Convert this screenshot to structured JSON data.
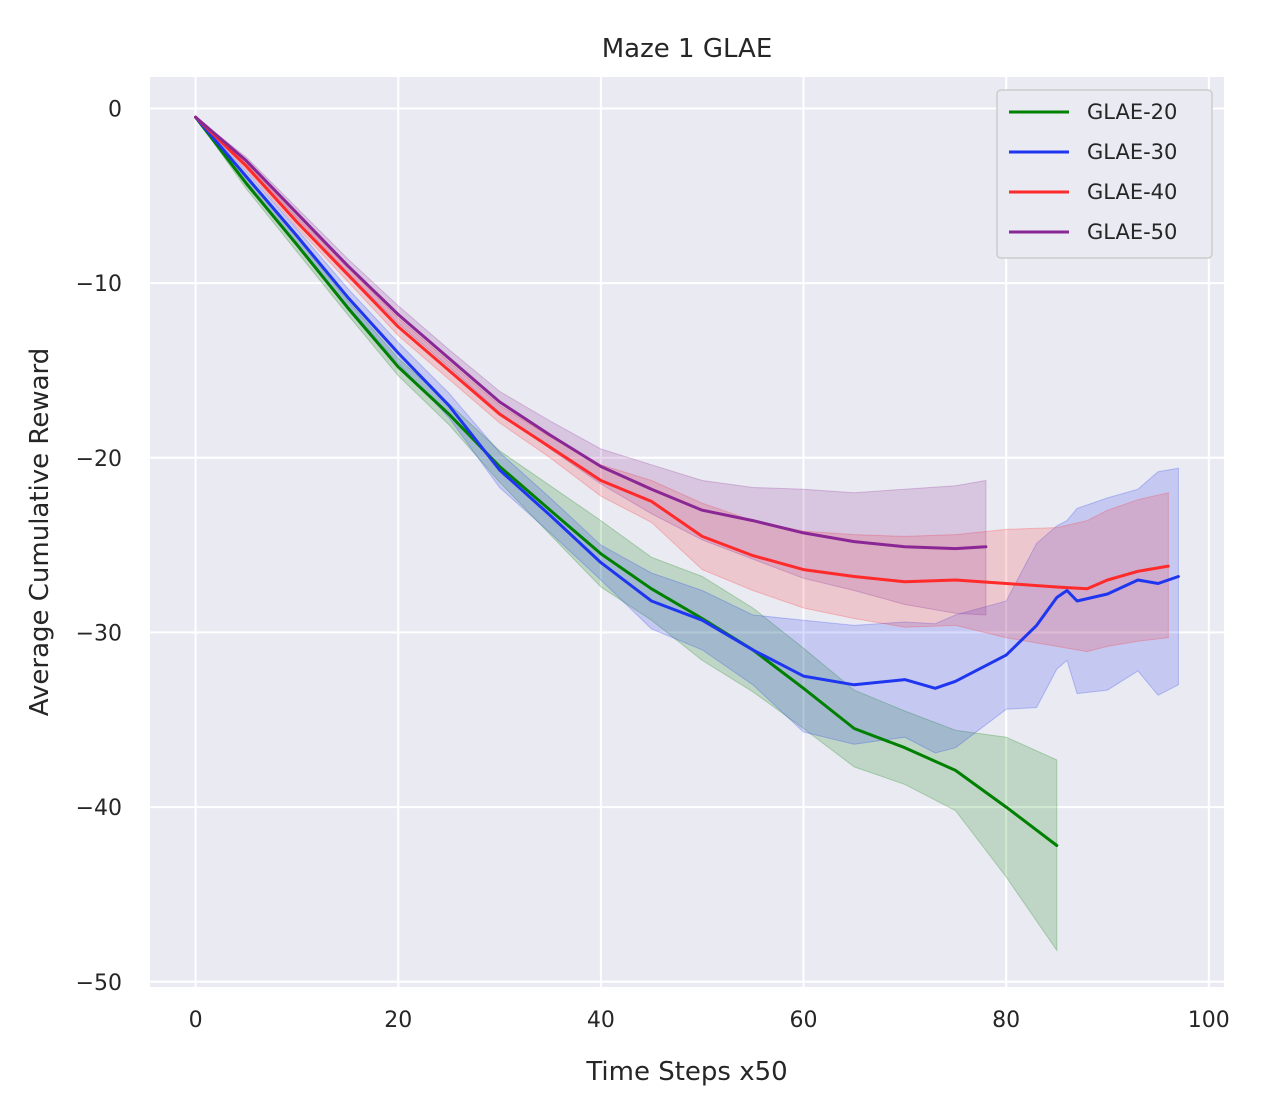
{
  "chart_data": {
    "type": "line",
    "title": "Maze 1 GLAE",
    "xlabel": "Time Steps x50",
    "ylabel": "Average Cumulative Reward",
    "xlim": [
      -4.5,
      101.5
    ],
    "ylim": [
      -50.3,
      1.8
    ],
    "xticks": [
      0,
      20,
      40,
      60,
      80,
      100
    ],
    "yticks": [
      0,
      -10,
      -20,
      -30,
      -40,
      -50
    ],
    "xtick_labels": [
      "0",
      "20",
      "40",
      "60",
      "80",
      "100"
    ],
    "ytick_labels": [
      "0",
      "−10",
      "−20",
      "−30",
      "−40",
      "−50"
    ],
    "grid": true,
    "legend_position": "top-right",
    "series": [
      {
        "name": "GLAE-20",
        "color": "#008000",
        "x": [
          0,
          5,
          10,
          15,
          20,
          25,
          30,
          35,
          40,
          45,
          50,
          55,
          60,
          65,
          70,
          75,
          80,
          85
        ],
        "values": [
          -0.5,
          -4.3,
          -7.8,
          -11.4,
          -14.8,
          -17.5,
          -20.5,
          -23.0,
          -25.5,
          -27.5,
          -29.2,
          -31.0,
          -33.2,
          -35.5,
          -36.6,
          -37.9,
          -40.0,
          -42.2
        ],
        "upper": [
          -0.5,
          -4.0,
          -7.4,
          -11.0,
          -14.3,
          -16.9,
          -19.6,
          -21.6,
          -23.6,
          -25.7,
          -26.8,
          -28.6,
          -30.9,
          -33.3,
          -34.5,
          -35.6,
          -36.0,
          -37.3
        ],
        "lower": [
          -0.5,
          -4.6,
          -8.2,
          -11.8,
          -15.3,
          -18.1,
          -21.4,
          -24.4,
          -27.4,
          -29.3,
          -31.6,
          -33.4,
          -35.5,
          -37.7,
          -38.7,
          -40.2,
          -44.0,
          -48.2
        ]
      },
      {
        "name": "GLAE-30",
        "color": "#1f36f0",
        "x": [
          0,
          5,
          10,
          15,
          20,
          25,
          30,
          35,
          40,
          45,
          50,
          55,
          60,
          65,
          70,
          73,
          75,
          80,
          83,
          85,
          86,
          87,
          90,
          93,
          95,
          97
        ],
        "values": [
          -0.5,
          -3.9,
          -7.3,
          -10.8,
          -14.0,
          -17.0,
          -20.7,
          -23.3,
          -26.0,
          -28.2,
          -29.3,
          -31.0,
          -32.5,
          -33.0,
          -32.7,
          -33.2,
          -32.8,
          -31.3,
          -29.6,
          -28.0,
          -27.6,
          -28.2,
          -27.8,
          -27.0,
          -27.2,
          -26.8
        ],
        "upper": [
          -0.5,
          -3.6,
          -6.9,
          -10.3,
          -13.4,
          -16.3,
          -19.7,
          -22.3,
          -25.0,
          -26.6,
          -27.6,
          -29.0,
          -29.3,
          -29.6,
          -29.4,
          -29.5,
          -29.0,
          -28.2,
          -24.9,
          -23.9,
          -23.6,
          -22.9,
          -22.3,
          -21.8,
          -20.8,
          -20.6
        ],
        "lower": [
          -0.5,
          -4.2,
          -7.7,
          -11.3,
          -14.6,
          -17.7,
          -21.7,
          -24.3,
          -27.0,
          -29.8,
          -31.0,
          -33.0,
          -35.7,
          -36.4,
          -36.0,
          -36.9,
          -36.6,
          -34.4,
          -34.3,
          -32.1,
          -31.6,
          -33.5,
          -33.3,
          -32.2,
          -33.6,
          -33.0
        ]
      },
      {
        "name": "GLAE-40",
        "color": "#ff2a2a",
        "x": [
          0,
          5,
          10,
          15,
          20,
          25,
          30,
          35,
          40,
          45,
          50,
          55,
          60,
          65,
          70,
          75,
          80,
          85,
          88,
          90,
          93,
          96
        ],
        "values": [
          -0.5,
          -3.3,
          -6.5,
          -9.5,
          -12.5,
          -15.0,
          -17.5,
          -19.4,
          -21.3,
          -22.5,
          -24.5,
          -25.6,
          -26.4,
          -26.8,
          -27.1,
          -27.0,
          -27.2,
          -27.4,
          -27.5,
          -27.0,
          -26.5,
          -26.2
        ],
        "upper": [
          -0.5,
          -3.1,
          -6.2,
          -9.1,
          -12.0,
          -14.5,
          -17.0,
          -18.8,
          -20.4,
          -21.3,
          -22.6,
          -23.6,
          -24.2,
          -24.4,
          -24.5,
          -24.4,
          -24.1,
          -24.0,
          -23.6,
          -23.0,
          -22.4,
          -22.0
        ],
        "lower": [
          -0.5,
          -3.5,
          -6.8,
          -9.9,
          -13.0,
          -15.5,
          -18.0,
          -20.0,
          -22.2,
          -23.7,
          -26.4,
          -27.6,
          -28.6,
          -29.2,
          -29.7,
          -29.6,
          -30.3,
          -30.8,
          -31.1,
          -30.8,
          -30.5,
          -30.3
        ]
      },
      {
        "name": "GLAE-50",
        "color": "#8b2795",
        "x": [
          0,
          5,
          10,
          15,
          20,
          25,
          30,
          35,
          40,
          45,
          50,
          55,
          60,
          65,
          70,
          75,
          78
        ],
        "values": [
          -0.5,
          -3.0,
          -6.0,
          -9.0,
          -11.8,
          -14.3,
          -16.8,
          -18.7,
          -20.5,
          -21.8,
          -23.0,
          -23.6,
          -24.3,
          -24.8,
          -25.1,
          -25.2,
          -25.1
        ],
        "upper": [
          -0.5,
          -2.8,
          -5.7,
          -8.6,
          -11.3,
          -13.8,
          -16.2,
          -17.9,
          -19.5,
          -20.4,
          -21.3,
          -21.7,
          -21.8,
          -22.0,
          -21.8,
          -21.6,
          -21.3
        ],
        "lower": [
          -0.5,
          -3.2,
          -6.3,
          -9.4,
          -12.3,
          -14.8,
          -17.4,
          -19.5,
          -21.5,
          -23.2,
          -24.7,
          -25.8,
          -26.9,
          -27.6,
          -28.4,
          -28.9,
          -29.0
        ]
      }
    ]
  }
}
